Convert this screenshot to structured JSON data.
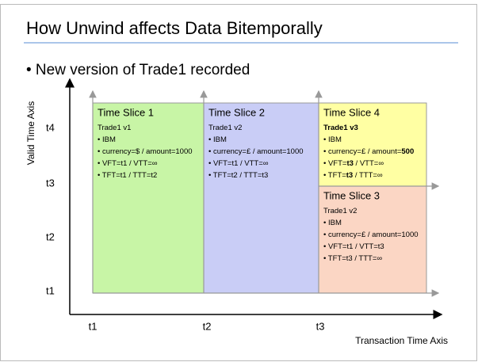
{
  "title": "How Unwind affects Data Bitemporally",
  "bullet": "• New version of Trade1 recorded",
  "y_axis": {
    "label": "Valid Time Axis",
    "ticks": [
      "t4",
      "t3",
      "t2",
      "t1"
    ]
  },
  "x_axis": {
    "label": "Transaction Time Axis",
    "ticks": [
      "t1",
      "t2",
      "t3"
    ]
  },
  "boxes": [
    {
      "heading": "Time Slice 1",
      "color": "#c8f5a6",
      "lines": [
        [
          "Trade1 v1"
        ],
        [
          "• IBM"
        ],
        [
          "• currency=$ / amount=1000"
        ],
        [
          "• VFT=t1 / VTT=∞"
        ],
        [
          "• TFT=t1 / TTT=t2"
        ]
      ]
    },
    {
      "heading": "Time Slice 2",
      "color": "#c9cdf6",
      "lines": [
        [
          "Trade1 v2"
        ],
        [
          "• IBM"
        ],
        [
          "• currency=£ / amount=1000"
        ],
        [
          "• VFT=t1 / VTT=∞"
        ],
        [
          "• TFT=t2 / TTT=t3"
        ]
      ]
    },
    {
      "heading": "Time Slice 4",
      "color": "#ffffa3",
      "lines": [
        [
          {
            "text": "Trade1 v3",
            "bold": true
          }
        ],
        [
          "• IBM"
        ],
        [
          "• currency=£ / amount=",
          {
            "text": "500",
            "bold": true
          }
        ],
        [
          "• VFT=",
          {
            "text": "t3",
            "bold": true
          },
          " / VTT=∞"
        ],
        [
          "• TFT=",
          {
            "text": "t3",
            "bold": true
          },
          " / TTT=∞"
        ]
      ]
    },
    {
      "heading": "Time Slice 3",
      "color": "#fbd6c4",
      "lines": [
        [
          "Trade1 v2"
        ],
        [
          "• IBM"
        ],
        [
          "• currency=£ / amount=1000"
        ],
        [
          "• VFT=t1 / VTT=t3"
        ],
        [
          "• TFT=t3 / TTT=∞"
        ]
      ]
    }
  ]
}
